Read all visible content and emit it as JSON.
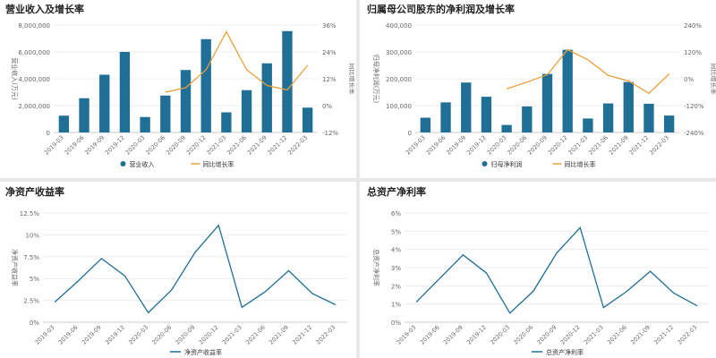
{
  "chart_data": [
    {
      "type": "bar+line",
      "title": "营业收入及增长率",
      "categories": [
        "2019-03",
        "2019-06",
        "2019-09",
        "2019-12",
        "2020-03",
        "2020-06",
        "2020-09",
        "2020-12",
        "2021-03",
        "2021-06",
        "2021-09",
        "2021-12",
        "2022-03"
      ],
      "ylabel": "营业收入(万元)",
      "y2label": "同比增长率",
      "ylim": [
        0,
        8000000
      ],
      "yticks": [
        "0",
        "2,000,000",
        "4,000,000",
        "6,000,000",
        "8,000,000"
      ],
      "y2lim": [
        -12,
        36
      ],
      "y2ticks": [
        "-12%",
        "0%",
        "12%",
        "24%",
        "36%"
      ],
      "series": [
        {
          "name": "营业收入",
          "kind": "bar",
          "color": "#1f6f96",
          "values": [
            1250000,
            2550000,
            4300000,
            6000000,
            1150000,
            2750000,
            4650000,
            6950000,
            1500000,
            3150000,
            5150000,
            7550000,
            1850000
          ]
        },
        {
          "name": "同比增长率",
          "kind": "line",
          "color": "#e8a03c",
          "values": [
            null,
            null,
            null,
            null,
            null,
            6,
            8,
            16,
            33,
            16,
            9,
            7,
            18
          ]
        }
      ],
      "legend_position": "bottom"
    },
    {
      "type": "bar+line",
      "title": "归属母公司股东的净利润及增长率",
      "categories": [
        "2019-03",
        "2019-06",
        "2019-09",
        "2019-12",
        "2020-03",
        "2020-06",
        "2020-09",
        "2020-12",
        "2021-03",
        "2021-06",
        "2021-09",
        "2021-12",
        "2022-03"
      ],
      "ylabel": "归母净利润(万元)",
      "y2label": "同比增长率",
      "ylim": [
        0,
        400000
      ],
      "yticks": [
        "0",
        "100,000",
        "200,000",
        "300,000",
        "400,000"
      ],
      "y2lim": [
        -240,
        240
      ],
      "y2ticks": [
        "-240%",
        "-120%",
        "0%",
        "120%",
        "240%"
      ],
      "series": [
        {
          "name": "归母净利润",
          "kind": "bar",
          "color": "#1f6f96",
          "values": [
            55000,
            112000,
            186000,
            133000,
            28000,
            97000,
            218000,
            308000,
            52000,
            108000,
            188000,
            107000,
            63000
          ]
        },
        {
          "name": "同比增长率",
          "kind": "line",
          "color": "#e8a03c",
          "values": [
            null,
            null,
            null,
            null,
            -45,
            -15,
            18,
            130,
            85,
            15,
            -10,
            -65,
            22
          ]
        }
      ],
      "legend_position": "bottom"
    },
    {
      "type": "line",
      "title": "净资产收益率",
      "categories": [
        "2019-03",
        "2019-06",
        "2019-09",
        "2019-12",
        "2020-03",
        "2020-06",
        "2020-09",
        "2020-12",
        "2021-03",
        "2021-06",
        "2021-09",
        "2021-12",
        "2022-03"
      ],
      "ylabel": "净资产收益率",
      "ylim": [
        0,
        12.5
      ],
      "yticks": [
        "0%",
        "2.5%",
        "5%",
        "7.5%",
        "10%",
        "12.5%"
      ],
      "series": [
        {
          "name": "净资产收益率",
          "color": "#1f6f96",
          "values": [
            2.3,
            4.7,
            7.3,
            5.3,
            1.1,
            3.7,
            8.0,
            11.1,
            1.7,
            3.5,
            5.9,
            3.3,
            2.0
          ]
        }
      ],
      "legend_position": "bottom"
    },
    {
      "type": "line",
      "title": "总资产净利率",
      "categories": [
        "2019-03",
        "2019-06",
        "2019-09",
        "2019-12",
        "2020-03",
        "2020-06",
        "2020-09",
        "2020-12",
        "2021-03",
        "2021-06",
        "2021-09",
        "2021-12",
        "2022-03"
      ],
      "ylabel": "总资产净利率",
      "ylim": [
        0,
        6
      ],
      "yticks": [
        "0%",
        "1%",
        "2%",
        "3%",
        "4%",
        "5%",
        "6%"
      ],
      "series": [
        {
          "name": "总资产净利率",
          "color": "#1f6f96",
          "values": [
            1.1,
            2.4,
            3.7,
            2.7,
            0.5,
            1.7,
            3.8,
            5.2,
            0.8,
            1.7,
            2.8,
            1.6,
            0.9
          ]
        }
      ],
      "legend_position": "bottom"
    }
  ]
}
